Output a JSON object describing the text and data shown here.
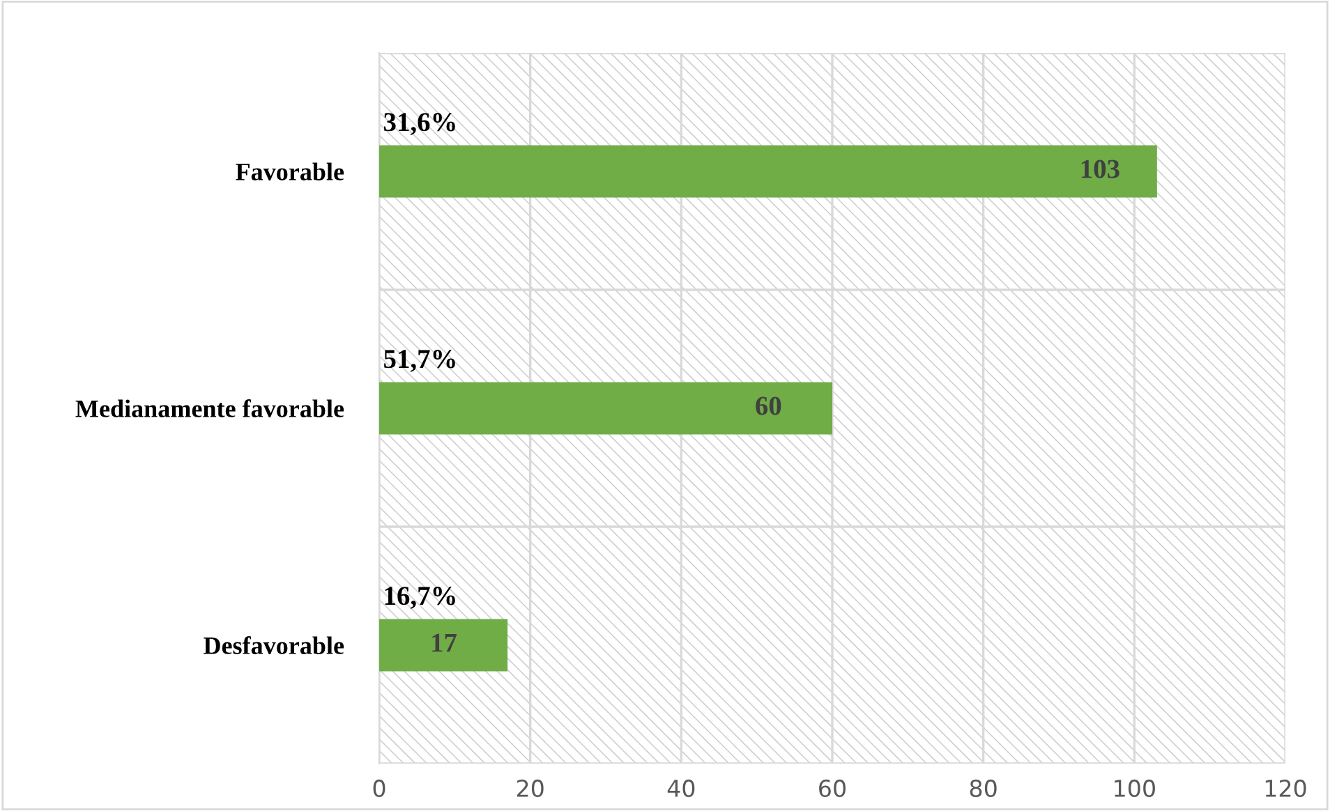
{
  "chart_data": {
    "type": "bar",
    "orientation": "horizontal",
    "categories": [
      "Favorable",
      "Medianamente favorable",
      "Desfavorable"
    ],
    "values": [
      103,
      60,
      17
    ],
    "color": "#70ad47",
    "data_labels": true,
    "xlim": [
      0,
      120
    ],
    "xticks": [
      0,
      20,
      40,
      60,
      80,
      100,
      120
    ],
    "grid": true,
    "annotations": [
      "31,6%",
      "51,7%",
      "16,7%"
    ]
  }
}
